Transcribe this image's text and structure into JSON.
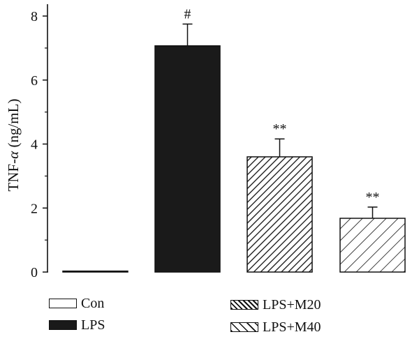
{
  "chart_data": {
    "type": "bar",
    "categories": [
      "Con",
      "LPS",
      "LPS+M20",
      "LPS+M40"
    ],
    "values": [
      0.03,
      7.07,
      3.6,
      1.68
    ],
    "errors": [
      0.0,
      0.68,
      0.56,
      0.35
    ],
    "annotations": [
      "",
      "#",
      "**",
      "**"
    ],
    "fills": [
      "empty",
      "solid-black",
      "dense-hatch",
      "sparse-hatch"
    ],
    "ylabel_prefix": "TNF-",
    "ylabel_symbol": "α",
    "ylabel_suffix": " (ng/mL)",
    "ylim": [
      0,
      8
    ],
    "yticks": [
      "0",
      "2",
      "4",
      "6",
      "8"
    ],
    "legend": [
      {
        "label": "Con",
        "fill": "empty"
      },
      {
        "label": "LPS",
        "fill": "solid-black"
      },
      {
        "label": "LPS+M20",
        "fill": "dense-hatch"
      },
      {
        "label": "LPS+M40",
        "fill": "sparse-hatch"
      }
    ],
    "legend_position": "bottom",
    "grid": false
  }
}
